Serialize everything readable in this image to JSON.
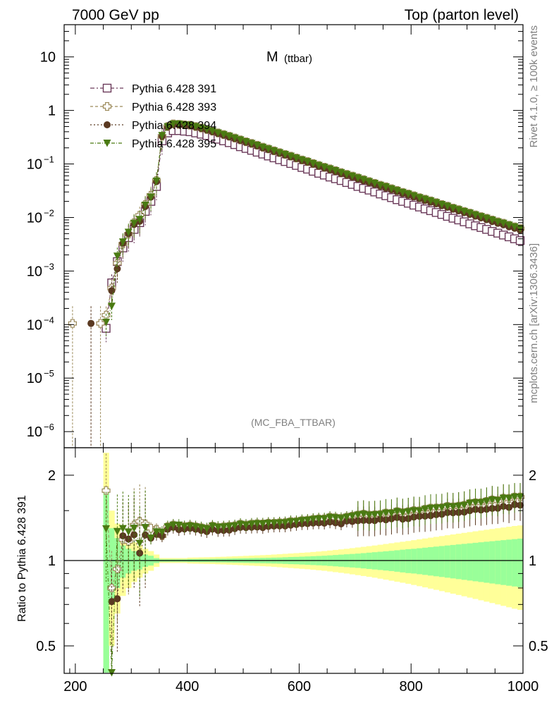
{
  "header": {
    "left": "7000 GeV pp",
    "right": "Top (parton level)"
  },
  "side": {
    "rivet": "Rivet 4.1.0, ≥ 100k events",
    "mcplots": "mcplots.cern.ch [arXiv:1306.3436]"
  },
  "plot": {
    "title_main": "M",
    "title_sub": "(ttbar)",
    "analysis": "(MC_FBA_TTBAR)",
    "ratio_ylabel": "Ratio to Pythia 6.428 391"
  },
  "colors": {
    "s391": "#6b3a5a",
    "s393": "#9c8a5a",
    "s394": "#5b3a22",
    "s395": "#4a7a12",
    "band_inner": "#99ff99",
    "band_outer": "#ffff99"
  },
  "chart_data": {
    "type": "line",
    "xlabel": "",
    "xlim": [
      180,
      1000
    ],
    "x_ticks": [
      "200",
      "400",
      "600",
      "800",
      "1000"
    ],
    "main": {
      "yscale": "log",
      "ylim": [
        5e-07,
        40
      ],
      "y_ticks": [
        {
          "base": "10",
          "exp": "",
          "value": 10
        },
        {
          "base": "1",
          "exp": "",
          "value": 1
        },
        {
          "base": "10",
          "exp": "−1",
          "value": 0.1
        },
        {
          "base": "10",
          "exp": "−2",
          "value": 0.01
        },
        {
          "base": "10",
          "exp": "−3",
          "value": 0.001
        },
        {
          "base": "10",
          "exp": "−4",
          "value": 0.0001
        },
        {
          "base": "10",
          "exp": "−5",
          "value": 1e-05
        },
        {
          "base": "10",
          "exp": "−6",
          "value": 1e-06
        }
      ]
    },
    "ratio": {
      "yscale": "log",
      "ylim": [
        0.4,
        2.5
      ],
      "y_ticks": [
        {
          "label": "2",
          "value": 2
        },
        {
          "label": "1",
          "value": 1
        },
        {
          "label": "0.5",
          "value": 0.5
        }
      ]
    },
    "legend": [
      "Pythia 6.428 391",
      "Pythia 6.428 393",
      "Pythia 6.428 394",
      "Pythia 6.428 395"
    ],
    "x": [
      255,
      265,
      275,
      285,
      295,
      305,
      315,
      325,
      335,
      345,
      355,
      365,
      375,
      385,
      395,
      405,
      415,
      425,
      435,
      445,
      455,
      465,
      475,
      485,
      495,
      505,
      515,
      525,
      535,
      545,
      555,
      565,
      575,
      585,
      595,
      605,
      615,
      625,
      635,
      645,
      655,
      665,
      675,
      685,
      695,
      705,
      715,
      725,
      735,
      745,
      755,
      765,
      775,
      785,
      795,
      805,
      815,
      825,
      835,
      845,
      855,
      865,
      875,
      885,
      895,
      905,
      915,
      925,
      935,
      945,
      955,
      965,
      975,
      985,
      995
    ],
    "series": [
      {
        "name": "Pythia 6.428 391",
        "marker": "open-square",
        "values": [
          8.5e-05,
          0.0006,
          0.0015,
          0.0027,
          0.0042,
          0.006,
          0.008,
          0.013,
          0.02,
          0.038,
          0.27,
          0.38,
          0.42,
          0.42,
          0.41,
          0.4,
          0.38,
          0.36,
          0.34,
          0.31,
          0.29,
          0.27,
          0.25,
          0.23,
          0.21,
          0.195,
          0.18,
          0.166,
          0.153,
          0.141,
          0.13,
          0.12,
          0.111,
          0.102,
          0.094,
          0.086,
          0.08,
          0.073,
          0.067,
          0.062,
          0.057,
          0.053,
          0.049,
          0.045,
          0.0415,
          0.038,
          0.035,
          0.0325,
          0.03,
          0.0275,
          0.0255,
          0.0235,
          0.0215,
          0.02,
          0.0185,
          0.017,
          0.0157,
          0.0145,
          0.0134,
          0.0124,
          0.0114,
          0.0105,
          0.0097,
          0.009,
          0.0083,
          0.0076,
          0.007,
          0.0065,
          0.006,
          0.0055,
          0.0051,
          0.0047,
          0.00435,
          0.004,
          0.0037
        ]
      },
      {
        "name": "Pythia 6.428 393",
        "marker": "open-cross",
        "values": [
          0.00015,
          0.00048,
          0.0014,
          0.0032,
          0.0049,
          0.008,
          0.011,
          0.0175,
          0.026,
          0.049,
          0.33,
          0.5,
          0.56,
          0.55,
          0.54,
          0.53,
          0.5,
          0.47,
          0.44,
          0.41,
          0.38,
          0.355,
          0.33,
          0.305,
          0.282,
          0.26,
          0.242,
          0.224,
          0.206,
          0.191,
          0.176,
          0.163,
          0.151,
          0.14,
          0.129,
          0.119,
          0.111,
          0.102,
          0.094,
          0.087,
          0.081,
          0.075,
          0.069,
          0.064,
          0.0595,
          0.055,
          0.051,
          0.047,
          0.0435,
          0.04,
          0.0375,
          0.0345,
          0.032,
          0.0295,
          0.0275,
          0.0255,
          0.0235,
          0.022,
          0.0205,
          0.019,
          0.0175,
          0.0163,
          0.015,
          0.014,
          0.013,
          0.0121,
          0.0112,
          0.0104,
          0.0097,
          0.009,
          0.0083,
          0.0078,
          0.0072,
          0.0067,
          0.0062
        ]
      },
      {
        "name": "Pythia 6.428 394",
        "marker": "filled-circle",
        "values": [
          null,
          0.00043,
          0.0011,
          0.0033,
          0.005,
          0.0074,
          0.0085,
          0.016,
          0.024,
          0.047,
          0.33,
          0.49,
          0.55,
          0.54,
          0.53,
          0.52,
          0.49,
          0.46,
          0.43,
          0.4,
          0.37,
          0.345,
          0.32,
          0.298,
          0.275,
          0.255,
          0.236,
          0.218,
          0.2,
          0.186,
          0.172,
          0.159,
          0.147,
          0.136,
          0.126,
          0.116,
          0.108,
          0.099,
          0.091,
          0.084,
          0.078,
          0.072,
          0.066,
          0.062,
          0.057,
          0.0525,
          0.0485,
          0.045,
          0.0415,
          0.0385,
          0.0355,
          0.033,
          0.0305,
          0.028,
          0.026,
          0.0242,
          0.0225,
          0.0208,
          0.0193,
          0.018,
          0.0166,
          0.0155,
          0.0143,
          0.0133,
          0.0123,
          0.0114,
          0.0106,
          0.0098,
          0.0091,
          0.0084,
          0.0078,
          0.0073,
          0.0067,
          0.0063,
          0.0058
        ]
      },
      {
        "name": "Pythia 6.428 395",
        "marker": "filled-triangle-down",
        "values": [
          0.00011,
          0.00022,
          0.0019,
          0.0035,
          0.0053,
          0.0078,
          0.0092,
          0.017,
          0.024,
          0.048,
          0.34,
          0.5,
          0.56,
          0.56,
          0.54,
          0.53,
          0.5,
          0.47,
          0.44,
          0.41,
          0.38,
          0.355,
          0.33,
          0.305,
          0.282,
          0.26,
          0.242,
          0.224,
          0.206,
          0.191,
          0.176,
          0.163,
          0.151,
          0.14,
          0.129,
          0.119,
          0.111,
          0.102,
          0.094,
          0.087,
          0.081,
          0.075,
          0.069,
          0.064,
          0.0595,
          0.055,
          0.051,
          0.047,
          0.0435,
          0.04,
          0.0375,
          0.0345,
          0.032,
          0.0295,
          0.0275,
          0.0255,
          0.0235,
          0.022,
          0.0205,
          0.019,
          0.0175,
          0.0163,
          0.015,
          0.014,
          0.013,
          0.0121,
          0.0112,
          0.0104,
          0.0097,
          0.009,
          0.0083,
          0.0078,
          0.0072,
          0.0067,
          0.0062
        ]
      }
    ],
    "low_points": [
      {
        "series": "Pythia 6.428 393",
        "x": 195,
        "value": 0.000105
      },
      {
        "series": "Pythia 6.428 393",
        "x": 245,
        "value": 0.000105
      },
      {
        "series": "Pythia 6.428 394",
        "x": 228,
        "value": 0.000105
      }
    ],
    "ratio_band": {
      "inner_rel": [
        0.8,
        0.3,
        0.2,
        0.13,
        0.1,
        0.08,
        0.07,
        0.05,
        0.04,
        0.02,
        0.01,
        0.01,
        0.01,
        0.01,
        0.01,
        0.012,
        0.012,
        0.013,
        0.013,
        0.014,
        0.015,
        0.015,
        0.016,
        0.017,
        0.018,
        0.019,
        0.02,
        0.021,
        0.022,
        0.023,
        0.024,
        0.025,
        0.027,
        0.029,
        0.03,
        0.032,
        0.034,
        0.036,
        0.038,
        0.04,
        0.043,
        0.046,
        0.049,
        0.052,
        0.055,
        0.058,
        0.062,
        0.066,
        0.07,
        0.074,
        0.078,
        0.082,
        0.087,
        0.092,
        0.097,
        0.1,
        0.105,
        0.11,
        0.115,
        0.12,
        0.125,
        0.13,
        0.135,
        0.14,
        0.145,
        0.15,
        0.155,
        0.16,
        0.165,
        0.17,
        0.175,
        0.18,
        0.185,
        0.19,
        0.195
      ],
      "outer_rel": [
        1.4,
        0.5,
        0.35,
        0.25,
        0.2,
        0.16,
        0.13,
        0.1,
        0.08,
        0.05,
        0.02,
        0.02,
        0.02,
        0.02,
        0.02,
        0.024,
        0.025,
        0.026,
        0.027,
        0.028,
        0.03,
        0.031,
        0.033,
        0.035,
        0.037,
        0.039,
        0.041,
        0.043,
        0.045,
        0.047,
        0.05,
        0.053,
        0.056,
        0.059,
        0.062,
        0.065,
        0.068,
        0.072,
        0.076,
        0.08,
        0.085,
        0.09,
        0.095,
        0.1,
        0.106,
        0.112,
        0.118,
        0.124,
        0.13,
        0.137,
        0.144,
        0.151,
        0.158,
        0.165,
        0.172,
        0.18,
        0.188,
        0.196,
        0.204,
        0.212,
        0.22,
        0.228,
        0.236,
        0.244,
        0.252,
        0.26,
        0.268,
        0.276,
        0.284,
        0.292,
        0.3,
        0.308,
        0.316,
        0.324,
        0.33
      ]
    }
  }
}
